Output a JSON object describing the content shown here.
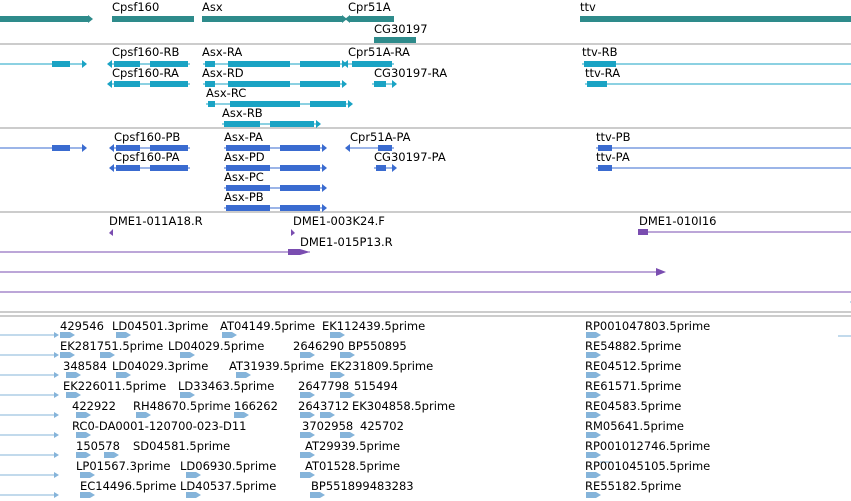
{
  "colors": {
    "gene": "#2e8b8b",
    "transcript": "#1aa3c4",
    "protein": "#3a6bd0",
    "clone": "#7a4db0",
    "est": "#85b4da",
    "divider": "#9a9a9a"
  },
  "tracks": {
    "genes": [
      {
        "label": "Cpsf160",
        "icon": "gene-bar"
      },
      {
        "label": "Asx",
        "icon": "gene-bar"
      },
      {
        "label": "Cpr51A",
        "icon": "gene-bar"
      },
      {
        "label": "CG30197",
        "icon": "gene-bar"
      },
      {
        "label": "ttv",
        "icon": "gene-bar"
      }
    ],
    "transcripts": [
      {
        "label": "Cpsf160-RB"
      },
      {
        "label": "Cpsf160-RA"
      },
      {
        "label": "Asx-RA"
      },
      {
        "label": "Asx-RD"
      },
      {
        "label": "Asx-RC"
      },
      {
        "label": "Asx-RB"
      },
      {
        "label": "Cpr51A-RA"
      },
      {
        "label": "CG30197-RA"
      },
      {
        "label": "ttv-RB"
      },
      {
        "label": "ttv-RA"
      }
    ],
    "proteins": [
      {
        "label": "Cpsf160-PB"
      },
      {
        "label": "Cpsf160-PA"
      },
      {
        "label": "Asx-PA"
      },
      {
        "label": "Asx-PD"
      },
      {
        "label": "Asx-PC"
      },
      {
        "label": "Asx-PB"
      },
      {
        "label": "Cpr51A-PA"
      },
      {
        "label": "CG30197-PA"
      },
      {
        "label": "ttv-PB"
      },
      {
        "label": "ttv-PA"
      }
    ],
    "clones": [
      {
        "label": "DME1-011A18.R"
      },
      {
        "label": "DME1-003K24.F"
      },
      {
        "label": "DME1-015P13.R"
      },
      {
        "label": "DME1-010I16"
      }
    ],
    "ests": [
      {
        "label": "429546"
      },
      {
        "label": "LD04501.3prime"
      },
      {
        "label": "AT04149.5prime"
      },
      {
        "label": "EK112439.5prime"
      },
      {
        "label": "RP001047803.5prime"
      },
      {
        "label": "EK281751.5prime"
      },
      {
        "label": "LD04029.5prime"
      },
      {
        "label": "2646290"
      },
      {
        "label": "BP550895"
      },
      {
        "label": "RE54882.5prime"
      },
      {
        "label": "348584"
      },
      {
        "label": "LD04029.3prime"
      },
      {
        "label": "AT31939.5prime"
      },
      {
        "label": "EK231809.5prime"
      },
      {
        "label": "RE04512.5prime"
      },
      {
        "label": "EK226011.5prime"
      },
      {
        "label": "LD33463.5prime"
      },
      {
        "label": "2647798"
      },
      {
        "label": "515494"
      },
      {
        "label": "RE61571.5prime"
      },
      {
        "label": "422922"
      },
      {
        "label": "RH48670.5prime"
      },
      {
        "label": "166262"
      },
      {
        "label": "2643712"
      },
      {
        "label": "EK304858.5prime"
      },
      {
        "label": "RE04583.5prime"
      },
      {
        "label": "RC0-DA0001-120700-023-D11"
      },
      {
        "label": "3702958"
      },
      {
        "label": "425702"
      },
      {
        "label": "RM05641.5prime"
      },
      {
        "label": "150578"
      },
      {
        "label": "SD04581.5prime"
      },
      {
        "label": "AT29939.5prime"
      },
      {
        "label": "RP001012746.5prime"
      },
      {
        "label": "LP01567.3prime"
      },
      {
        "label": "LD06930.5prime"
      },
      {
        "label": "AT01528.5prime"
      },
      {
        "label": "RP001045105.5prime"
      },
      {
        "label": "EC14496.5prime"
      },
      {
        "label": "LD40537.5prime"
      },
      {
        "label": "BP551899483283"
      },
      {
        "label": "RE55182.5prime"
      }
    ]
  }
}
